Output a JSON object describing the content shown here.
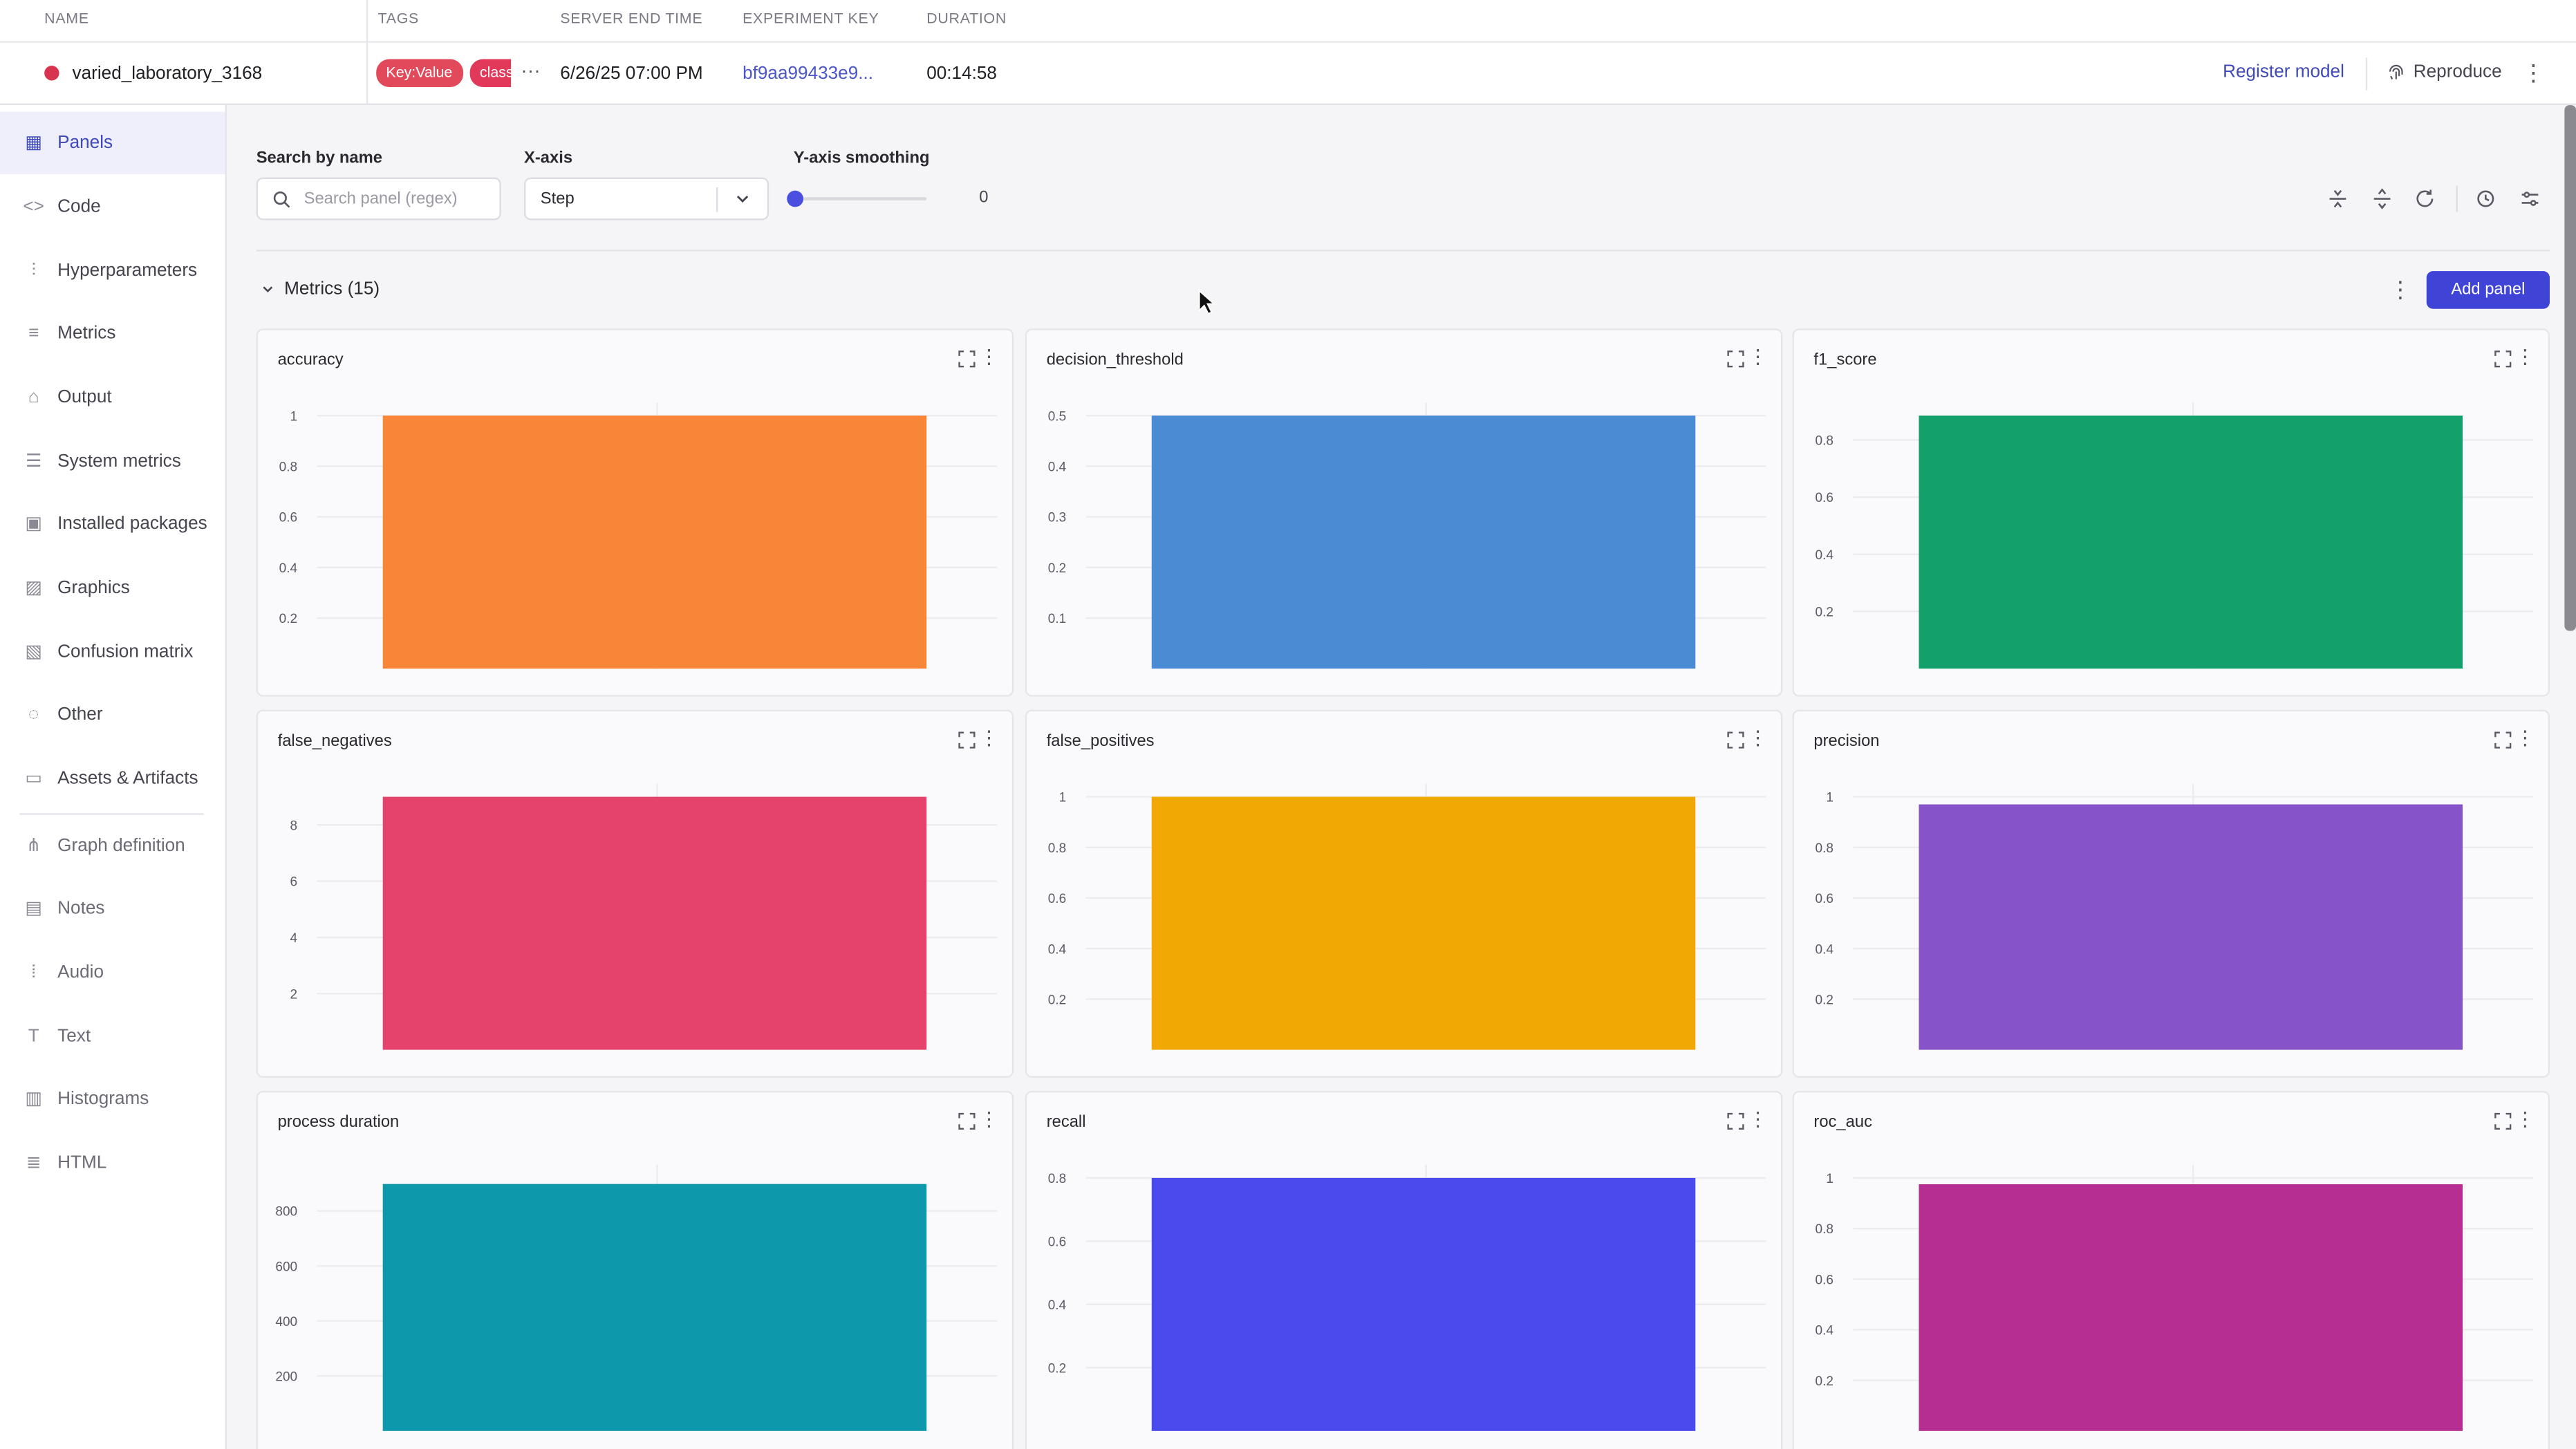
{
  "header": {
    "columns": {
      "name": "NAME",
      "tags": "TAGS",
      "server_end_time": "SERVER END TIME",
      "experiment_key": "EXPERIMENT KEY",
      "duration": "DURATION"
    },
    "row": {
      "name": "varied_laboratory_3168",
      "status_color": "#d8344f",
      "tags": [
        "Key:Value",
        "class"
      ],
      "more": "···",
      "server_end_time": "6/26/25 07:00 PM",
      "experiment_key": "bf9aa99433e9...",
      "duration": "00:14:58"
    },
    "register_model": "Register model",
    "reproduce": "Reproduce"
  },
  "sidebar": {
    "items": [
      {
        "label": "Panels",
        "icon": "grid-icon",
        "active": true
      },
      {
        "label": "Code",
        "icon": "code-icon"
      },
      {
        "label": "Hyperparameters",
        "icon": "sliders-icon"
      },
      {
        "label": "Metrics",
        "icon": "list-icon"
      },
      {
        "label": "Output",
        "icon": "terminal-icon"
      },
      {
        "label": "System metrics",
        "icon": "system-icon"
      },
      {
        "label": "Installed packages",
        "icon": "python-icon"
      },
      {
        "label": "Graphics",
        "icon": "image-icon"
      },
      {
        "label": "Confusion matrix",
        "icon": "matrix-icon"
      },
      {
        "label": "Other",
        "icon": "dots-circle-icon"
      },
      {
        "label": "Assets & Artifacts",
        "icon": "folder-icon"
      },
      {
        "label": "Graph definition",
        "icon": "graph-icon"
      },
      {
        "label": "Notes",
        "icon": "notes-icon"
      },
      {
        "label": "Audio",
        "icon": "audio-icon"
      },
      {
        "label": "Text",
        "icon": "text-icon"
      },
      {
        "label": "Histograms",
        "icon": "histogram-icon"
      },
      {
        "label": "HTML",
        "icon": "html-icon"
      }
    ]
  },
  "controls": {
    "search_label": "Search by name",
    "search_placeholder": "Search panel (regex)",
    "xaxis_label": "X-axis",
    "xaxis_value": "Step",
    "smoothing_label": "Y-axis smoothing",
    "smoothing_value": "0"
  },
  "section": {
    "title": "Metrics (15)",
    "add_panel": "Add panel"
  },
  "chart_data": [
    {
      "title": "accuracy",
      "type": "bar",
      "color": "#f98637",
      "values": [
        1
      ],
      "ylim": [
        0,
        1
      ],
      "yticks": [
        0.2,
        0.4,
        0.6,
        0.8,
        1
      ],
      "ytick_labels": [
        "0.2",
        "0.4",
        "0.6",
        "0.8",
        "1"
      ]
    },
    {
      "title": "decision_threshold",
      "type": "bar",
      "color": "#4b8bd4",
      "values": [
        0.5
      ],
      "ylim": [
        0,
        0.5
      ],
      "yticks": [
        0.1,
        0.2,
        0.3,
        0.4,
        0.5
      ],
      "ytick_labels": [
        "0.1",
        "0.2",
        "0.3",
        "0.4",
        "0.5"
      ]
    },
    {
      "title": "f1_score",
      "type": "bar",
      "color": "#14a06a",
      "values": [
        0.885
      ],
      "ylim": [
        0,
        0.885
      ],
      "yticks": [
        0.2,
        0.4,
        0.6,
        0.8
      ],
      "ytick_labels": [
        "0.2",
        "0.4",
        "0.6",
        "0.8"
      ]
    },
    {
      "title": "false_negatives",
      "type": "bar",
      "color": "#e5426c",
      "values": [
        9
      ],
      "ylim": [
        0,
        9
      ],
      "yticks": [
        2,
        4,
        6,
        8
      ],
      "ytick_labels": [
        "2",
        "4",
        "6",
        "8"
      ]
    },
    {
      "title": "false_positives",
      "type": "bar",
      "color": "#f1a804",
      "values": [
        1
      ],
      "ylim": [
        0,
        1
      ],
      "yticks": [
        0.2,
        0.4,
        0.6,
        0.8,
        1
      ],
      "ytick_labels": [
        "0.2",
        "0.4",
        "0.6",
        "0.8",
        "1"
      ]
    },
    {
      "title": "precision",
      "type": "bar",
      "color": "#8654c8",
      "values": [
        0.97
      ],
      "ylim": [
        0,
        1
      ],
      "yticks": [
        0.2,
        0.4,
        0.6,
        0.8,
        1
      ],
      "ytick_labels": [
        "0.2",
        "0.4",
        "0.6",
        "0.8",
        "1"
      ]
    },
    {
      "title": "process duration",
      "type": "bar",
      "color": "#0e98ab",
      "values": [
        898
      ],
      "ylim": [
        0,
        920
      ],
      "yticks": [
        200,
        400,
        600,
        800
      ],
      "ytick_labels": [
        "200",
        "400",
        "600",
        "800"
      ]
    },
    {
      "title": "recall",
      "type": "bar",
      "color": "#4a4bec",
      "values": [
        0.8
      ],
      "ylim": [
        0,
        0.8
      ],
      "yticks": [
        0.2,
        0.4,
        0.6,
        0.8
      ],
      "ytick_labels": [
        "0.2",
        "0.4",
        "0.6",
        "0.8"
      ]
    },
    {
      "title": "roc_auc",
      "type": "bar",
      "color": "#b72e92",
      "values": [
        0.975
      ],
      "ylim": [
        0,
        1
      ],
      "yticks": [
        0.2,
        0.4,
        0.6,
        0.8,
        1
      ],
      "ytick_labels": [
        "0.2",
        "0.4",
        "0.6",
        "0.8",
        "1"
      ]
    }
  ]
}
